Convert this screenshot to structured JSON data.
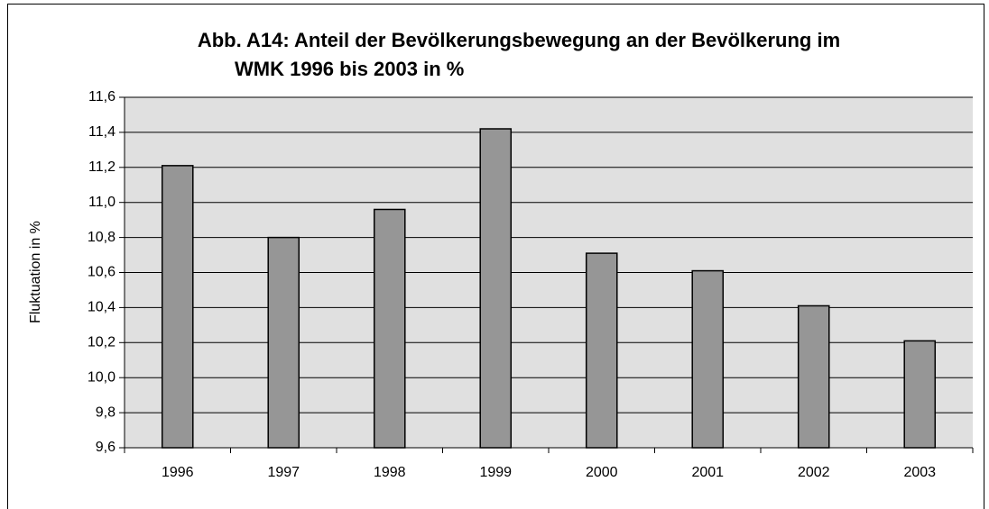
{
  "chart_data": {
    "type": "bar",
    "title": [
      "Abb. A14: Anteil der Bevölkerungsbewegung an der Bevölkerung im",
      "WMK 1996 bis 2003 in %"
    ],
    "y_label": "Fluktuation in %",
    "categories": [
      "1996",
      "1997",
      "1998",
      "1999",
      "2000",
      "2001",
      "2002",
      "2003"
    ],
    "values": [
      11.21,
      10.8,
      10.96,
      11.42,
      10.71,
      10.61,
      10.41,
      10.21
    ],
    "color": "#969696",
    "ylim": [
      9.6,
      11.6
    ],
    "yticks": [
      {
        "value": 9.6,
        "label": "9,6"
      },
      {
        "value": 9.8,
        "label": "9,8"
      },
      {
        "value": 10.0,
        "label": "10,0"
      },
      {
        "value": 10.2,
        "label": "10,2"
      },
      {
        "value": 10.4,
        "label": "10,4"
      },
      {
        "value": 10.6,
        "label": "10,6"
      },
      {
        "value": 10.8,
        "label": "10,8"
      },
      {
        "value": 11.0,
        "label": "11,0"
      },
      {
        "value": 11.2,
        "label": "11,2"
      },
      {
        "value": 11.4,
        "label": "11,4"
      },
      {
        "value": 11.6,
        "label": "11,6"
      }
    ],
    "grid": true
  }
}
